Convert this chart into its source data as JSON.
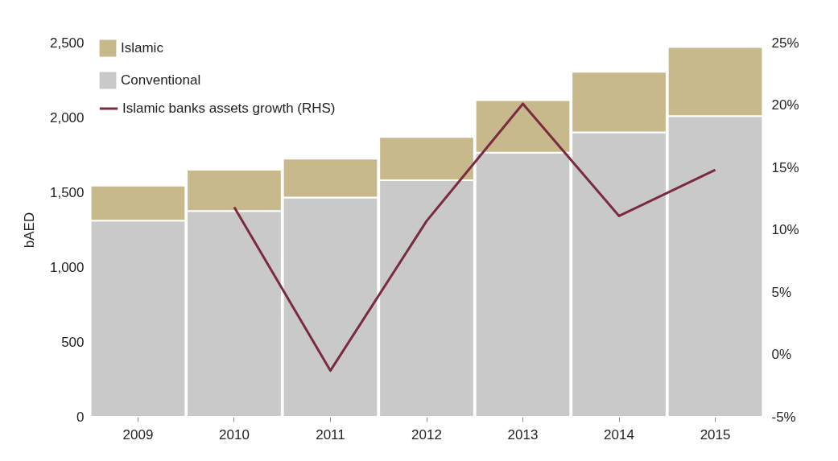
{
  "chart_data": {
    "type": "bar",
    "ylabel": "bAED",
    "stacked": true,
    "legend": "top left",
    "categories": [
      "2009",
      "2010",
      "2011",
      "2012",
      "2013",
      "2014",
      "2015"
    ],
    "series": [
      {
        "name": "Conventional",
        "color": "#c9c9c9",
        "values": [
          1310,
          1375,
          1465,
          1580,
          1765,
          1900,
          2010
        ]
      },
      {
        "name": "Islamic",
        "color": "#c8b98d",
        "values": [
          235,
          275,
          260,
          290,
          350,
          405,
          460
        ]
      },
      {
        "name": "Islamic banks assets growth (RHS)",
        "type": "line",
        "axis": "y2",
        "color": "#7a2b3e",
        "values": [
          null,
          11.8,
          -1.3,
          10.7,
          20.1,
          11.1,
          14.8
        ]
      }
    ],
    "ylim": [
      0,
      2500
    ],
    "yticks": [
      0,
      500,
      {
        "value": 1000,
        "label": "1,000"
      },
      {
        "value": 1500,
        "label": "1,500"
      },
      {
        "value": 2000,
        "label": "2,000"
      },
      {
        "value": 2500,
        "label": "2,500"
      }
    ],
    "y2lim": [
      -5,
      25
    ],
    "y2ticks": [
      {
        "value": -5,
        "label": "-5%"
      },
      {
        "value": 0,
        "label": "0%"
      },
      {
        "value": 5,
        "label": "5%"
      },
      {
        "value": 10,
        "label": "10%"
      },
      {
        "value": 15,
        "label": "15%"
      },
      {
        "value": 20,
        "label": "20%"
      },
      {
        "value": 25,
        "label": "25%"
      }
    ]
  }
}
